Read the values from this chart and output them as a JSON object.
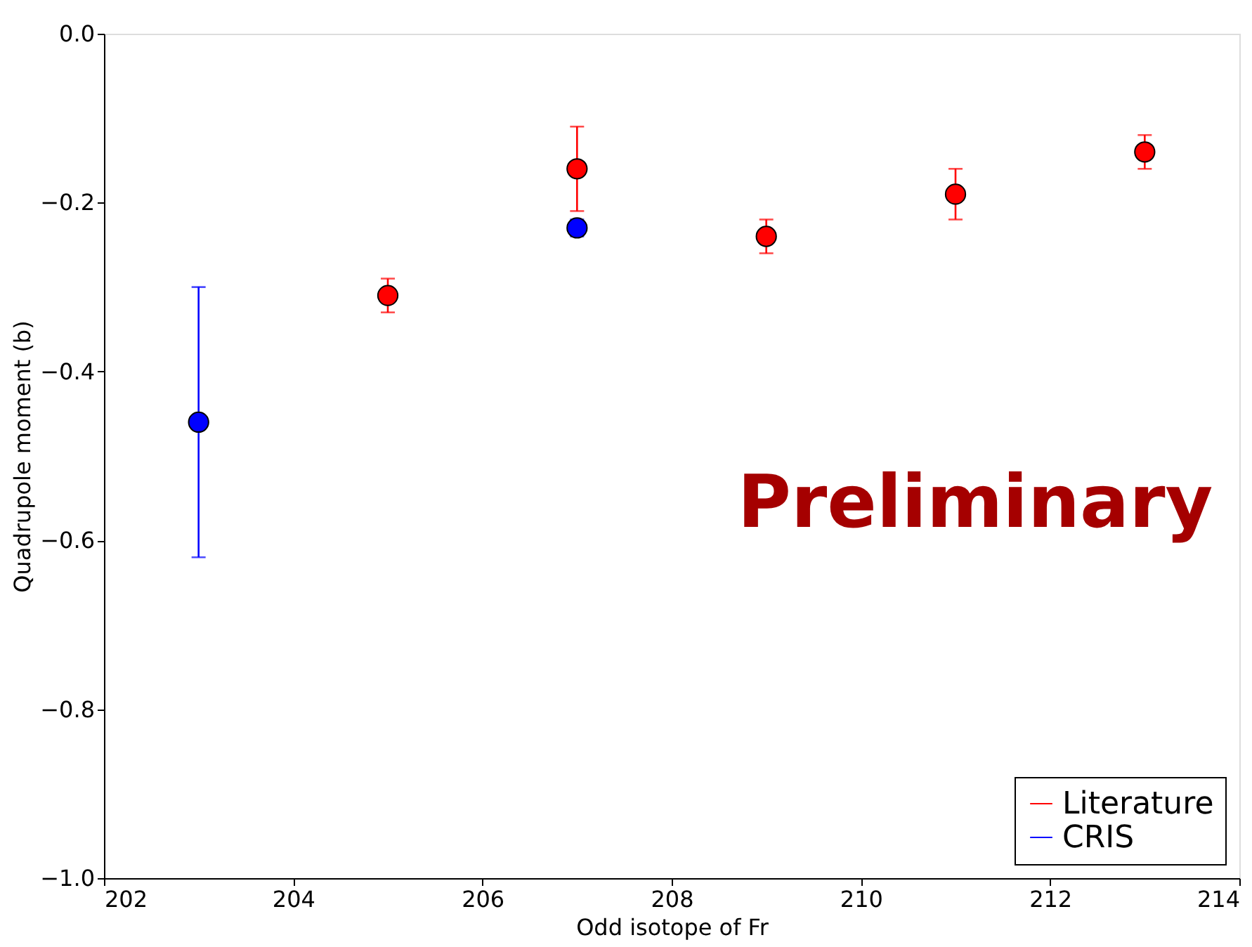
{
  "chart_data": {
    "type": "scatter",
    "xlabel": "Odd isotope of Fr",
    "ylabel": "Quadrupole moment (b)",
    "series": [
      {
        "name": "Literature",
        "color": "#ff0000",
        "x": [
          205,
          207,
          209,
          211,
          213
        ],
        "values": [
          -0.31,
          -0.16,
          -0.24,
          -0.19,
          -0.14
        ],
        "errors": [
          0.02,
          0.05,
          0.02,
          0.03,
          0.02
        ]
      },
      {
        "name": "CRIS",
        "color": "#0000ff",
        "x": [
          203,
          207
        ],
        "values": [
          -0.46,
          -0.23
        ],
        "errors": [
          0.16,
          0.01
        ]
      }
    ],
    "xlim": [
      202,
      214
    ],
    "xticks": [
      202,
      204,
      206,
      208,
      210,
      212,
      214
    ],
    "ylim": [
      -1.0,
      0.0
    ],
    "yticks": [
      {
        "value": -1.0,
        "label": "−1.0"
      },
      {
        "value": -0.8,
        "label": "−0.8"
      },
      {
        "value": -0.6,
        "label": "−0.6"
      },
      {
        "value": -0.4,
        "label": "−0.4"
      },
      {
        "value": -0.2,
        "label": "−0.2"
      },
      {
        "value": 0.0,
        "label": "0.0"
      }
    ],
    "annotations": [
      "Preliminary"
    ],
    "marker": "circle",
    "grid": false,
    "legend": "bottom right"
  }
}
